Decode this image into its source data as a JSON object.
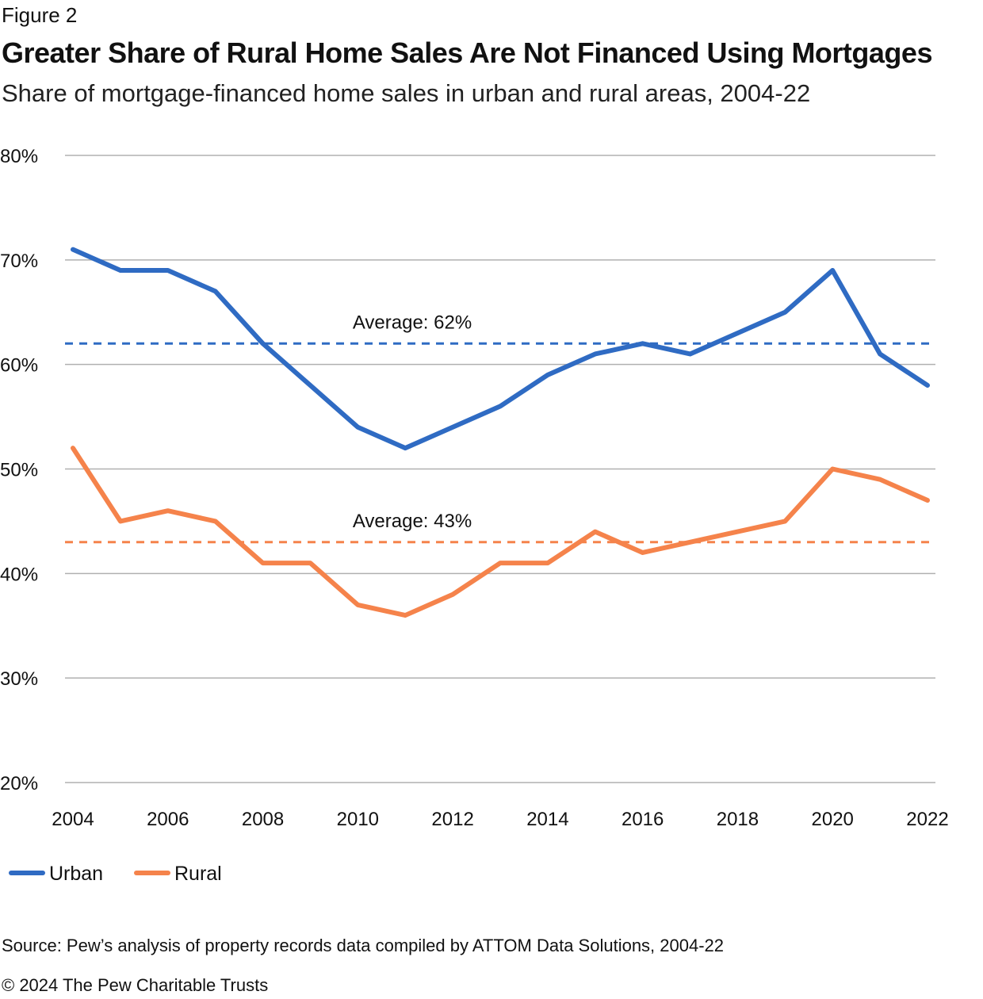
{
  "figure_label": "Figure 2",
  "title": "Greater Share of Rural Home Sales Are Not Financed Using Mortgages",
  "subtitle": "Share of mortgage-financed home sales in urban and rural areas, 2004-22",
  "source": "Source: Pew’s analysis of property records data compiled by ATTOM Data Solutions, 2004-22",
  "copyright": "© 2024 The Pew Charitable Trusts",
  "colors": {
    "urban": "#2f6bc3",
    "rural": "#f5834b",
    "grid": "#b0b0b0"
  },
  "chart_data": {
    "type": "line",
    "title": "Greater Share of Rural Home Sales Are Not Financed Using Mortgages",
    "xlabel": "",
    "ylabel": "",
    "ylim": [
      20,
      80
    ],
    "yticks": [
      20,
      30,
      40,
      50,
      60,
      70,
      80
    ],
    "ytick_labels": [
      "20%",
      "30%",
      "40%",
      "50%",
      "60%",
      "70%",
      "80%"
    ],
    "x": [
      2004,
      2005,
      2006,
      2007,
      2008,
      2009,
      2010,
      2011,
      2012,
      2013,
      2014,
      2015,
      2016,
      2017,
      2018,
      2019,
      2020,
      2021,
      2022
    ],
    "xtick_labels": [
      "2004",
      "2006",
      "2008",
      "2010",
      "2012",
      "2014",
      "2016",
      "2018",
      "2020",
      "2022"
    ],
    "grid": true,
    "legend": "bottom-left",
    "series": [
      {
        "name": "Urban",
        "values": [
          71,
          69,
          69,
          67,
          62,
          58,
          54,
          52,
          54,
          56,
          59,
          61,
          62,
          61,
          63,
          65,
          69,
          61,
          58
        ],
        "average": 62,
        "average_label": "Average: 62%"
      },
      {
        "name": "Rural",
        "values": [
          52,
          45,
          46,
          45,
          41,
          41,
          37,
          36,
          38,
          41,
          41,
          44,
          42,
          43,
          44,
          45,
          50,
          49,
          47
        ],
        "average": 43,
        "average_label": "Average: 43%"
      }
    ]
  }
}
